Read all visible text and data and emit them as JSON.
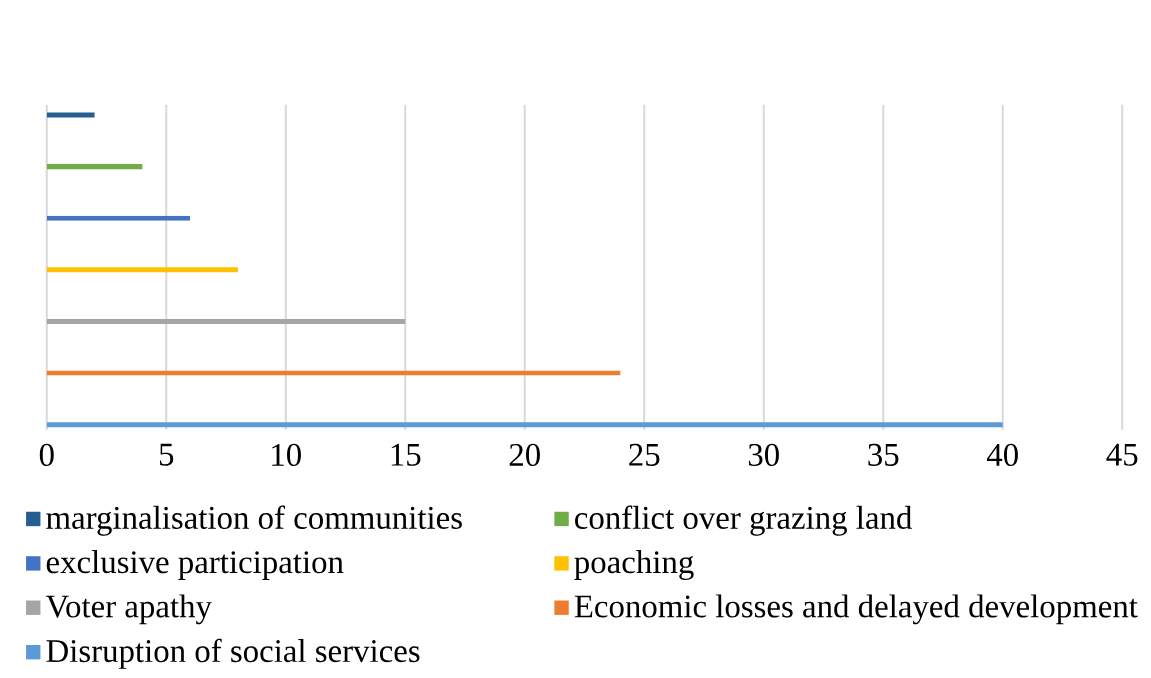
{
  "chart_data": {
    "type": "bar",
    "orientation": "horizontal",
    "categories": [
      null
    ],
    "series": [
      {
        "name": "marginalisation of communities",
        "color": "#255e91",
        "values": [
          2
        ]
      },
      {
        "name": "conflict over grazing land",
        "color": "#70ad47",
        "values": [
          4
        ]
      },
      {
        "name": "exclusive participation",
        "color": "#4472c4",
        "values": [
          6
        ]
      },
      {
        "name": "poaching",
        "color": "#ffc000",
        "values": [
          8
        ]
      },
      {
        "name": "Voter apathy",
        "color": "#a5a5a5",
        "values": [
          15
        ]
      },
      {
        "name": "Economic losses and delayed development",
        "color": "#ed7d31",
        "values": [
          24
        ]
      },
      {
        "name": "Disruption of social services",
        "color": "#5b9bd5",
        "values": [
          40
        ]
      }
    ],
    "xlim": [
      0,
      45
    ],
    "xticks": [
      0,
      5,
      10,
      15,
      20,
      25,
      30,
      35,
      40,
      45
    ],
    "grid": "x",
    "legend": "bottom"
  }
}
